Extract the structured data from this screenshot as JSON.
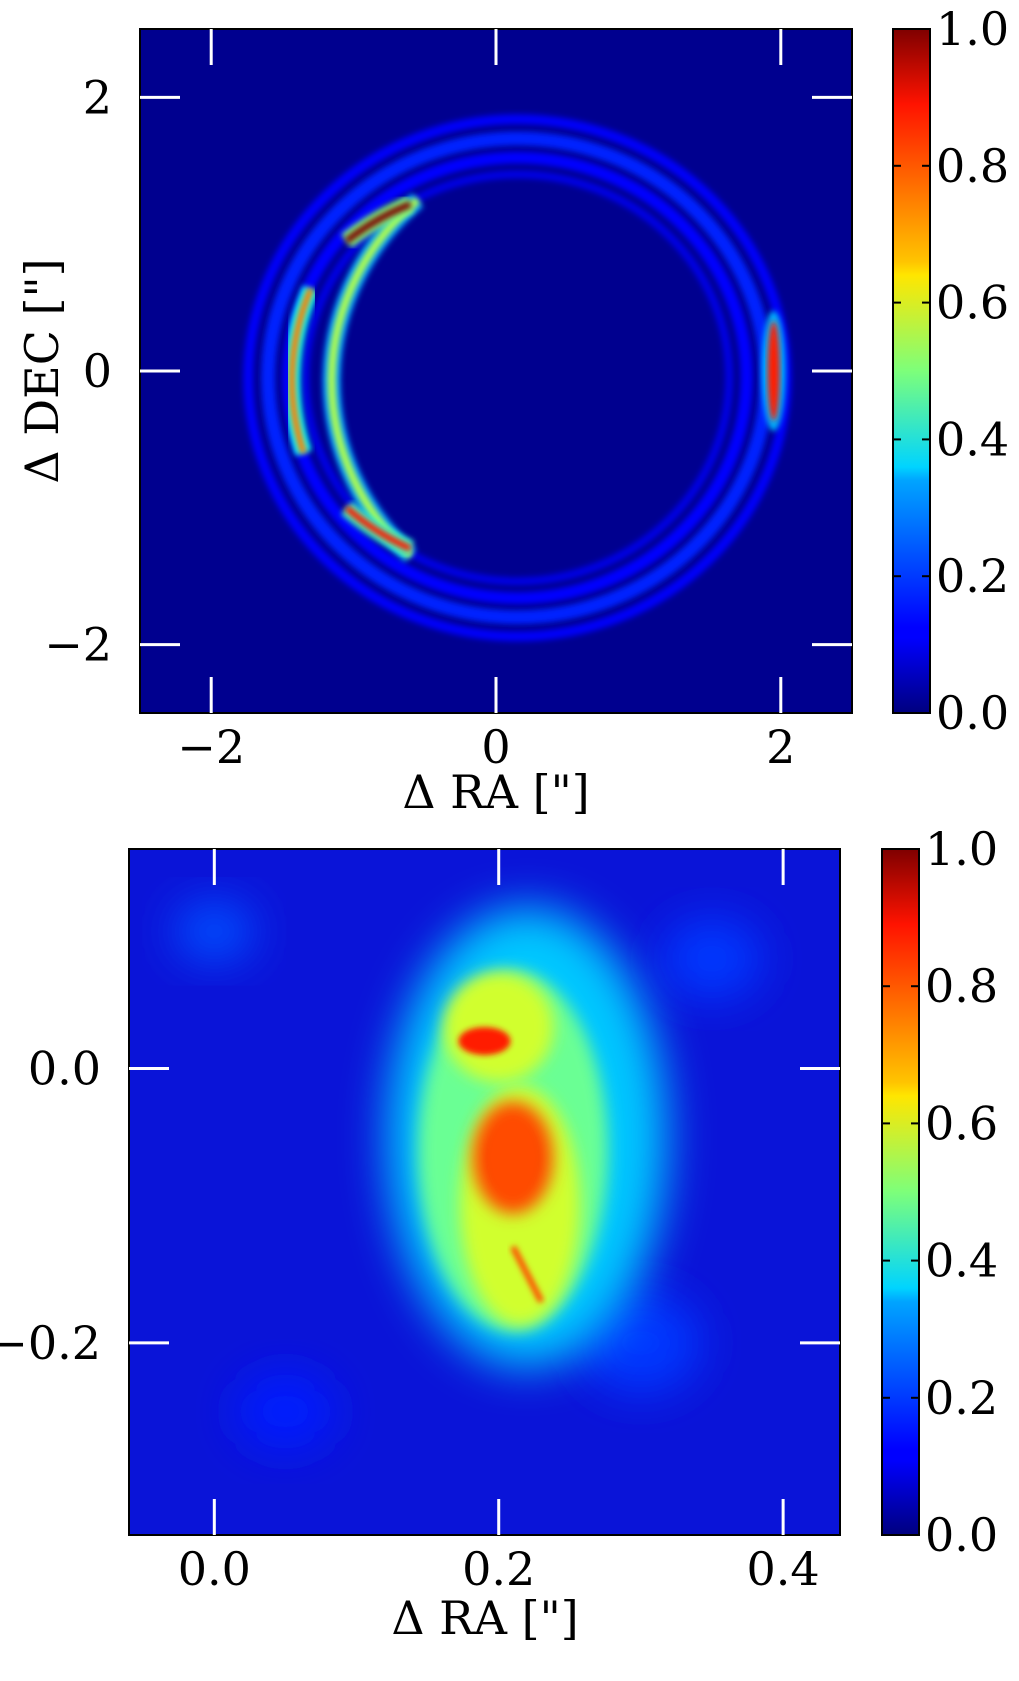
{
  "chart_data": [
    {
      "type": "heatmap",
      "title": "",
      "xlabel": "Δ RA [\"]",
      "ylabel": "Δ DEC [\"]",
      "xlim": [
        -2.5,
        2.5
      ],
      "ylim": [
        -2.5,
        2.5
      ],
      "xticks": [
        -2,
        0,
        2
      ],
      "yticks": [
        -2,
        0,
        2
      ],
      "xtick_labels": [
        "−2",
        "0",
        "2"
      ],
      "ytick_labels": [
        "−2",
        "0",
        "2"
      ],
      "colormap": "jet",
      "colorbar": {
        "range": [
          0.0,
          1.0
        ],
        "ticks": [
          0.0,
          0.2,
          0.4,
          0.6,
          0.8,
          1.0
        ],
        "tick_labels": [
          "0.0",
          "0.2",
          "0.4",
          "0.6",
          "0.8",
          "1.0"
        ]
      },
      "description_features": {
        "ring": {
          "center": [
            0.15,
            -0.05
          ],
          "radius_x": 1.75,
          "radius_y": 1.75
        },
        "bright_arc_west": {
          "center": [
            -1.5,
            0.0
          ],
          "peak": 0.75
        },
        "bright_arc_northwest": {
          "center": [
            -0.85,
            1.1
          ],
          "peak": 1.0
        },
        "bright_arc_southwest": {
          "center": [
            -0.75,
            -1.25
          ],
          "peak": 0.85
        },
        "bright_arc_east": {
          "center": [
            1.95,
            0.0
          ],
          "peak": 0.85
        }
      }
    },
    {
      "type": "heatmap",
      "title": "",
      "xlabel": "Δ RA [\"]",
      "ylabel": "",
      "xlim": [
        -0.06,
        0.44
      ],
      "ylim": [
        -0.34,
        0.16
      ],
      "xticks": [
        0.0,
        0.2,
        0.4
      ],
      "yticks": [
        0.0,
        -0.2
      ],
      "xtick_labels": [
        "0.0",
        "0.2",
        "0.4"
      ],
      "ytick_labels": [
        "0.0",
        "−0.2"
      ],
      "colormap": "jet",
      "colorbar": {
        "range": [
          0.0,
          1.0
        ],
        "ticks": [
          0.0,
          0.2,
          0.4,
          0.6,
          0.8,
          1.0
        ],
        "tick_labels": [
          "0.0",
          "0.2",
          "0.4",
          "0.6",
          "0.8",
          "1.0"
        ]
      },
      "description_features": {
        "upper_peak": {
          "center": [
            0.19,
            0.02
          ],
          "peak": 0.85
        },
        "lower_peak": {
          "center": [
            0.21,
            -0.065
          ],
          "peak": 1.0
        },
        "tail": {
          "from": [
            0.21,
            -0.13
          ],
          "to": [
            0.23,
            -0.17
          ],
          "peak": 0.8
        }
      }
    }
  ],
  "colors": {
    "background_low": "#00008f",
    "tick_mark": "#ffffff",
    "frame": "#000000"
  }
}
